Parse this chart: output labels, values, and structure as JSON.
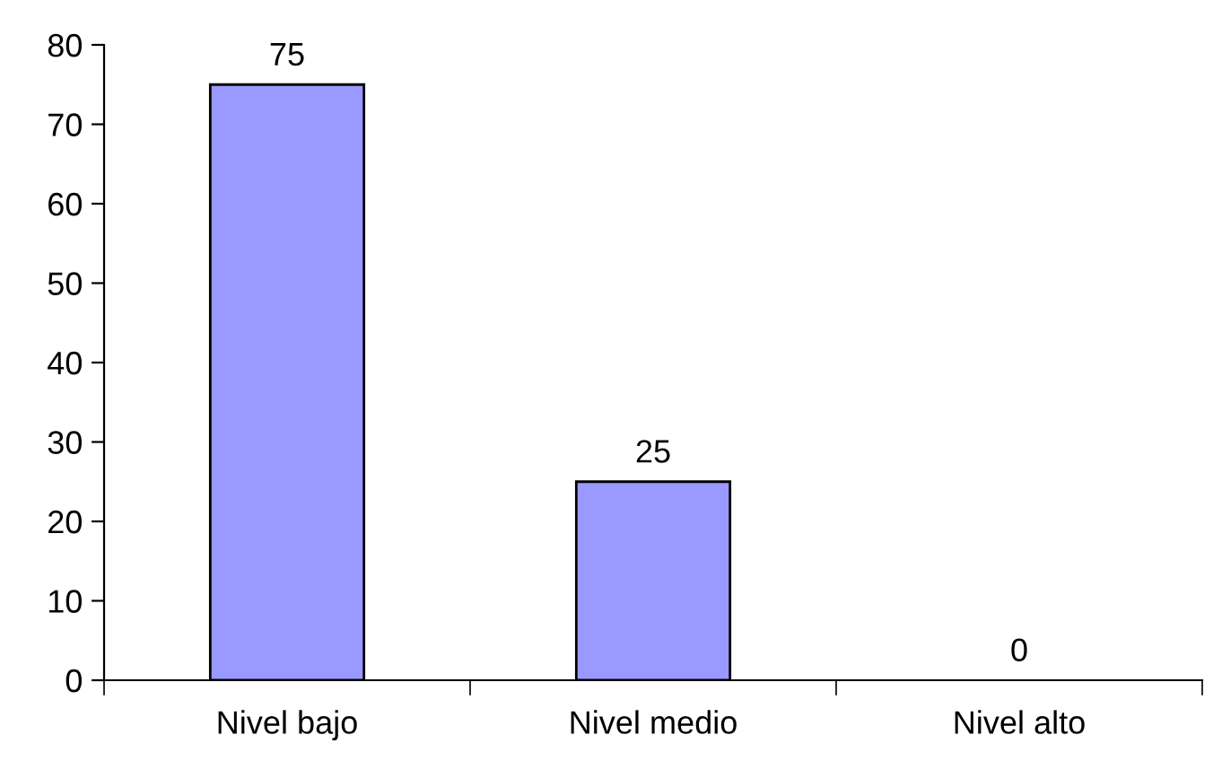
{
  "chart_data": {
    "type": "bar",
    "categories": [
      "Nivel bajo",
      "Nivel medio",
      "Nivel alto"
    ],
    "values": [
      75,
      25,
      0
    ],
    "color": "#9999ff",
    "data_labels": true,
    "ylim": [
      0,
      80
    ],
    "yticks": [
      0,
      10,
      20,
      30,
      40,
      50,
      60,
      70,
      80
    ],
    "grid": false
  }
}
